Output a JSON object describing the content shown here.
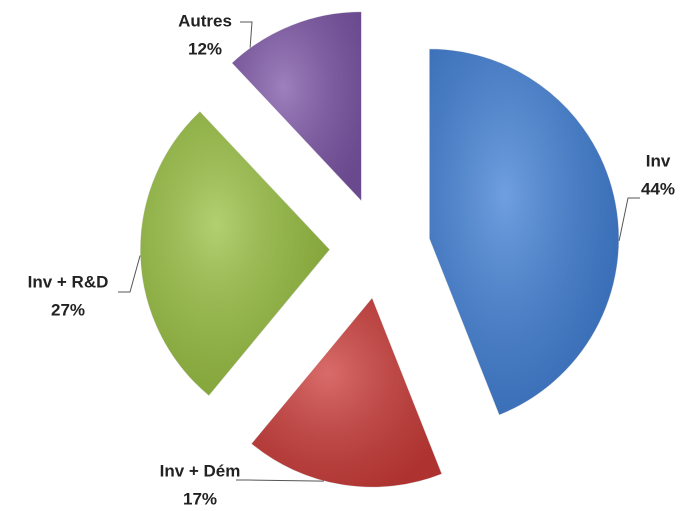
{
  "chart_data": {
    "type": "pie",
    "categories": [
      "Inv",
      "Inv + Dém",
      "Inv + R&D",
      "Autres"
    ],
    "values": [
      44,
      17,
      27,
      12
    ],
    "value_labels": [
      "44%",
      "17%",
      "27%",
      "12%"
    ],
    "colors": [
      "#3f7fd6",
      "#cc3b38",
      "#98c040",
      "#7e56a8"
    ]
  }
}
